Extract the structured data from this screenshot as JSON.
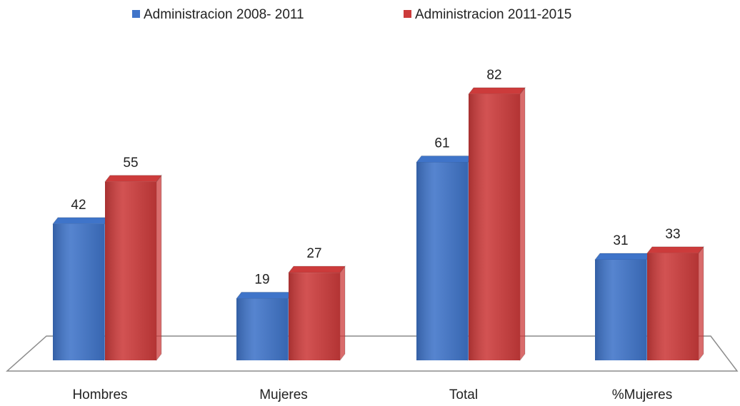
{
  "chart_data": {
    "type": "bar",
    "categories": [
      "Hombres",
      "Mujeres",
      "Total",
      "%Mujeres"
    ],
    "series": [
      {
        "name": "Administracion 2008- 2011",
        "color": "#3f74c9",
        "values": [
          42,
          19,
          61,
          31
        ]
      },
      {
        "name": "Administracion 2011-2015",
        "color": "#cc3b3b",
        "values": [
          55,
          27,
          82,
          33
        ]
      }
    ],
    "legend": "top"
  }
}
